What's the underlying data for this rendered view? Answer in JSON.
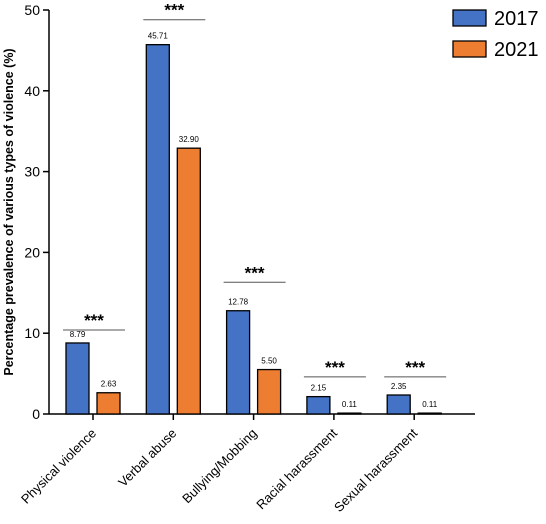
{
  "chart_data": {
    "type": "bar",
    "title": "",
    "xlabel": "",
    "ylabel": "Percentage prevalence of various types of violence (%)",
    "ylim": [
      0,
      50
    ],
    "yticks": [
      0,
      10,
      20,
      30,
      40,
      50
    ],
    "categories": [
      "Physical violence",
      "Verbal abuse",
      "Bullying/Mobbing",
      "Racial harassment",
      "Sexual harassment"
    ],
    "series": [
      {
        "name": "2017",
        "color": "#4472C4",
        "values": [
          8.79,
          45.71,
          12.78,
          2.15,
          2.35
        ],
        "labels": [
          "8.79",
          "45.71",
          "12.78",
          "2.15",
          "2.35"
        ]
      },
      {
        "name": "2021",
        "color": "#ED7D31",
        "values": [
          2.63,
          32.9,
          5.5,
          0.11,
          0.11
        ],
        "labels": [
          "2.63",
          "32.90",
          "5.50",
          "0.11",
          "0.11"
        ]
      }
    ],
    "significance": [
      {
        "category": "Physical violence",
        "label": "***",
        "level": 10.4
      },
      {
        "category": "Verbal abuse",
        "label": "***",
        "level": 48.8
      },
      {
        "category": "Bullying/Mobbing",
        "label": "***",
        "level": 16.3
      },
      {
        "category": "Racial harassment",
        "label": "***",
        "level": 4.6
      },
      {
        "category": "Sexual harassment",
        "label": "***",
        "level": 4.6
      }
    ],
    "legend": {
      "position": "top-right"
    },
    "grid": false
  }
}
